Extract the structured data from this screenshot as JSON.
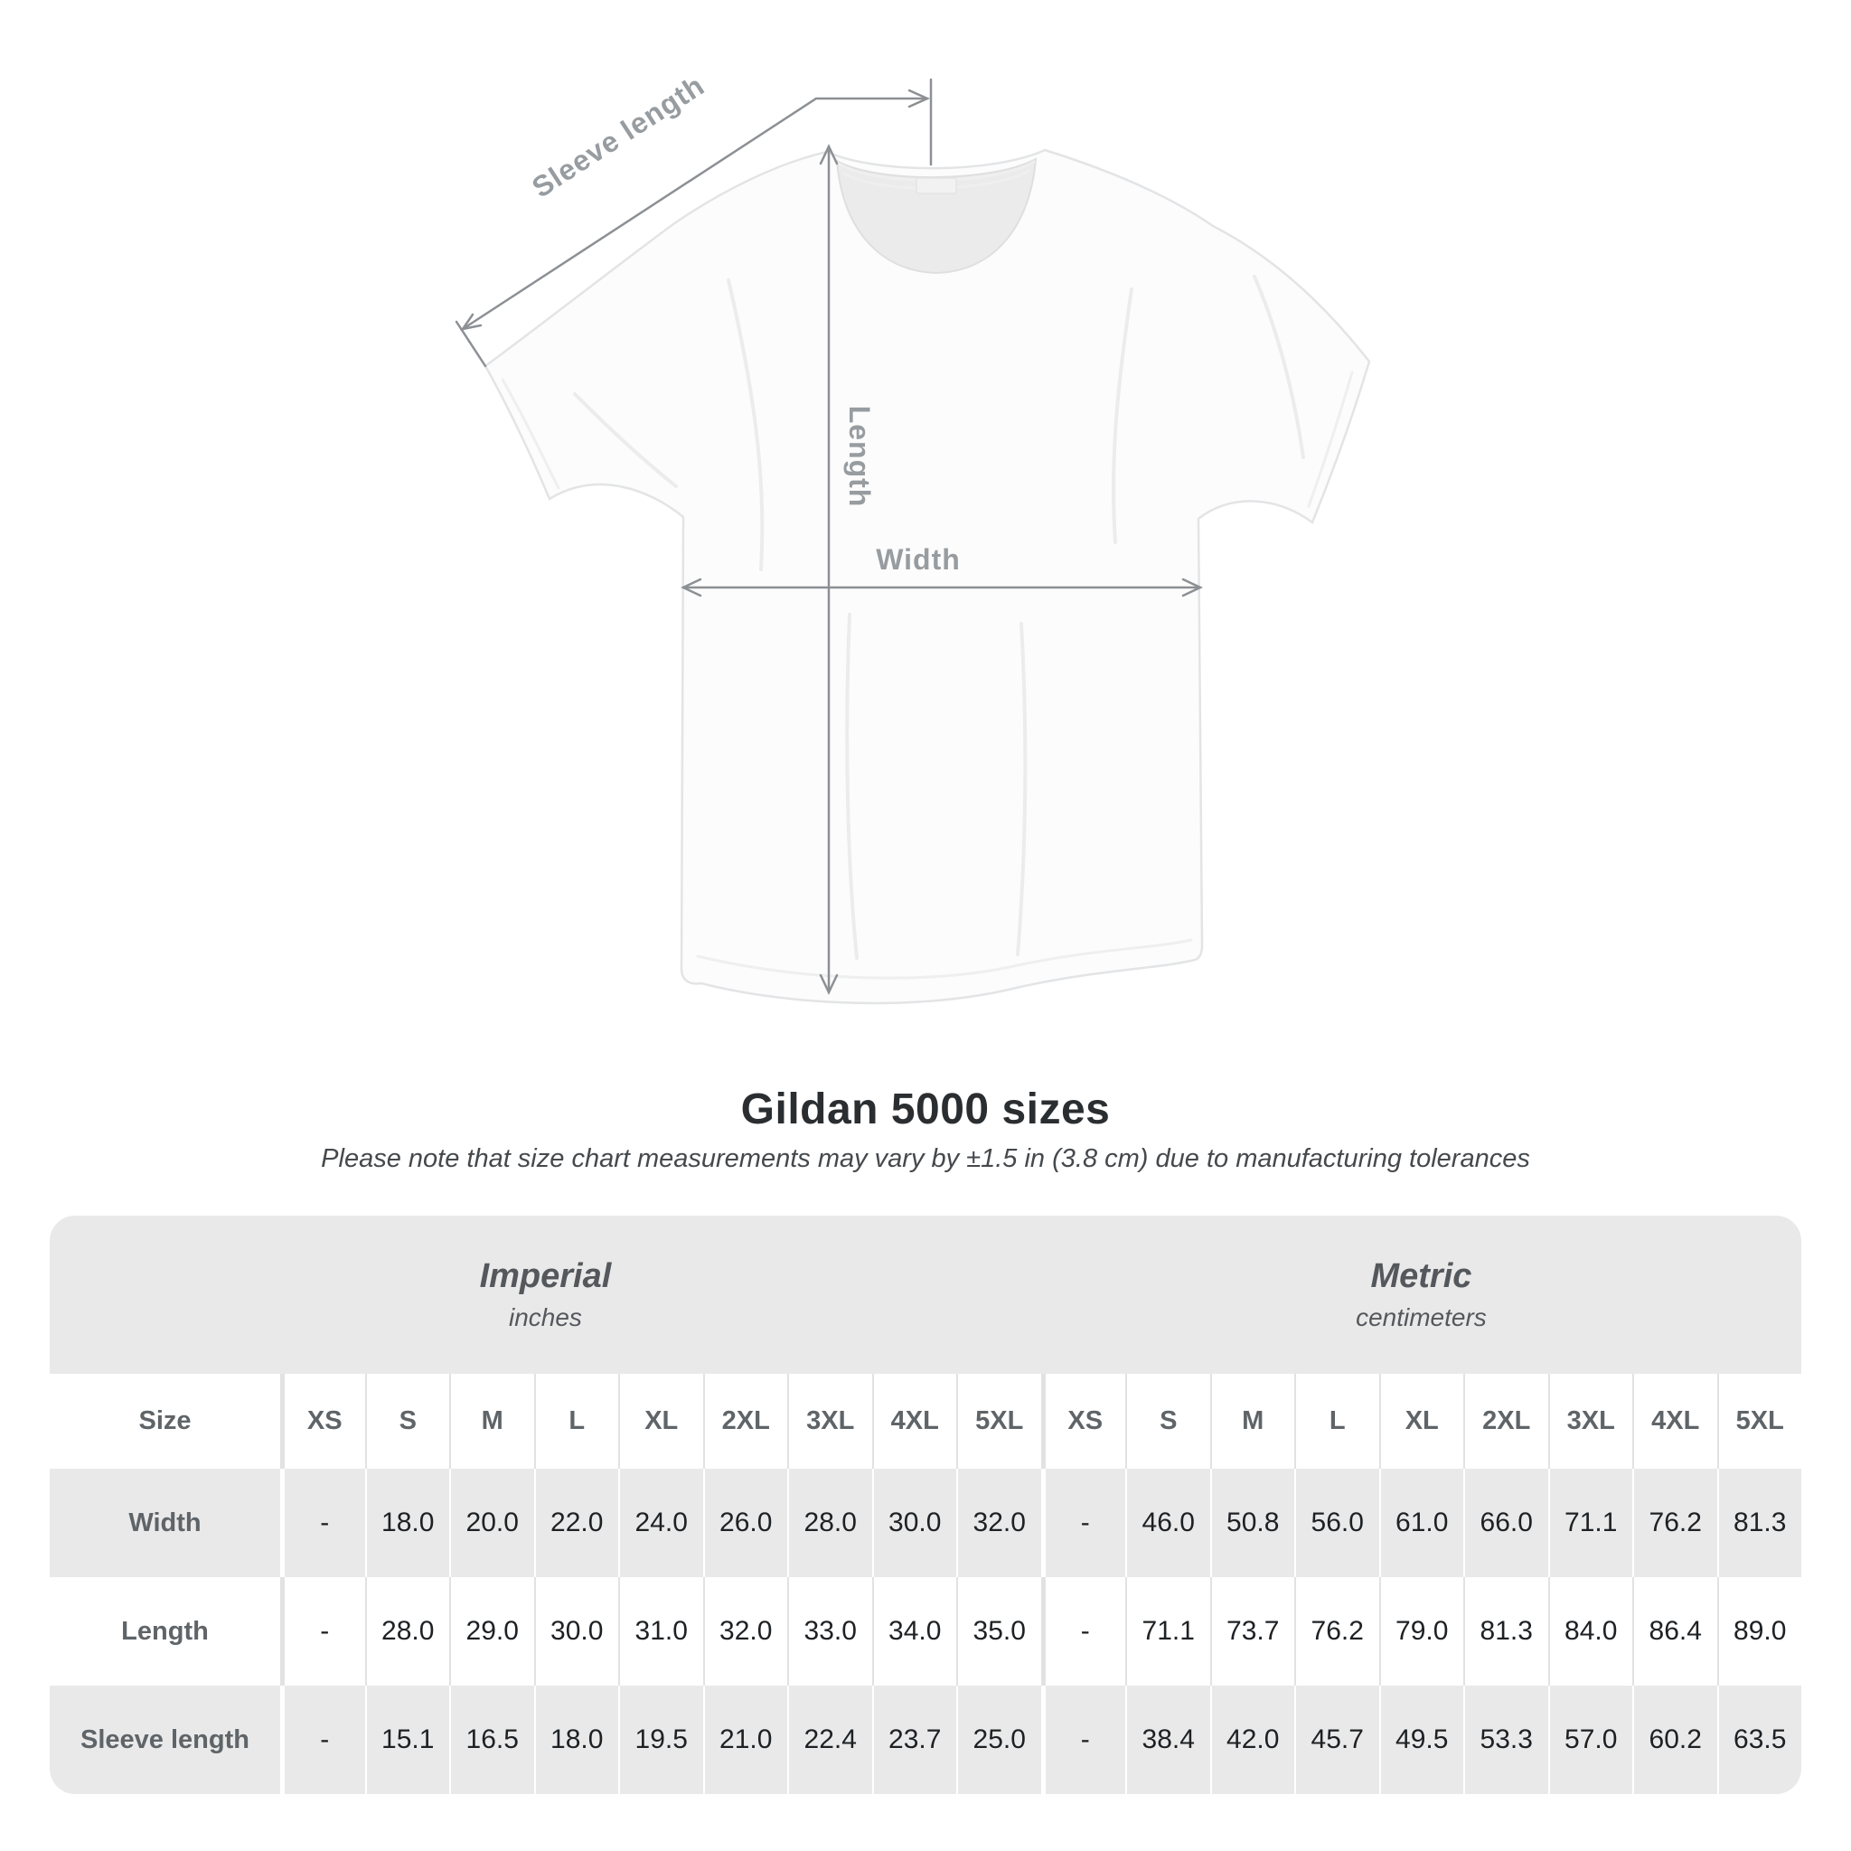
{
  "diagram": {
    "sleeve_label": "Sleeve length",
    "length_label": "Length",
    "width_label": "Width"
  },
  "title": "Gildan 5000 sizes",
  "subtitle": "Please note that size chart measurements may vary by ±1.5 in (3.8 cm) due to manufacturing tolerances",
  "table": {
    "unit_groups": [
      {
        "name": "Imperial",
        "unit": "inches"
      },
      {
        "name": "Metric",
        "unit": "centimeters"
      }
    ],
    "size_header": "Size",
    "sizes": [
      "XS",
      "S",
      "M",
      "L",
      "XL",
      "2XL",
      "3XL",
      "4XL",
      "5XL"
    ],
    "rows": [
      {
        "label": "Width",
        "imperial": [
          "-",
          "18.0",
          "20.0",
          "22.0",
          "24.0",
          "26.0",
          "28.0",
          "30.0",
          "32.0"
        ],
        "metric": [
          "-",
          "46.0",
          "50.8",
          "56.0",
          "61.0",
          "66.0",
          "71.1",
          "76.2",
          "81.3"
        ]
      },
      {
        "label": "Length",
        "imperial": [
          "-",
          "28.0",
          "29.0",
          "30.0",
          "31.0",
          "32.0",
          "33.0",
          "34.0",
          "35.0"
        ],
        "metric": [
          "-",
          "71.1",
          "73.7",
          "76.2",
          "79.0",
          "81.3",
          "84.0",
          "86.4",
          "89.0"
        ]
      },
      {
        "label": "Sleeve length",
        "imperial": [
          "-",
          "15.1",
          "16.5",
          "18.0",
          "19.5",
          "21.0",
          "22.4",
          "23.7",
          "25.0"
        ],
        "metric": [
          "-",
          "38.4",
          "42.0",
          "45.7",
          "49.5",
          "53.3",
          "57.0",
          "60.2",
          "63.5"
        ]
      }
    ]
  },
  "colors": {
    "stripe_gray": "#e9e9e9",
    "dimension_line": "#8c9094",
    "dimension_label": "#979ca0",
    "header_text": "#5f6468",
    "value_text": "#1e2124"
  }
}
